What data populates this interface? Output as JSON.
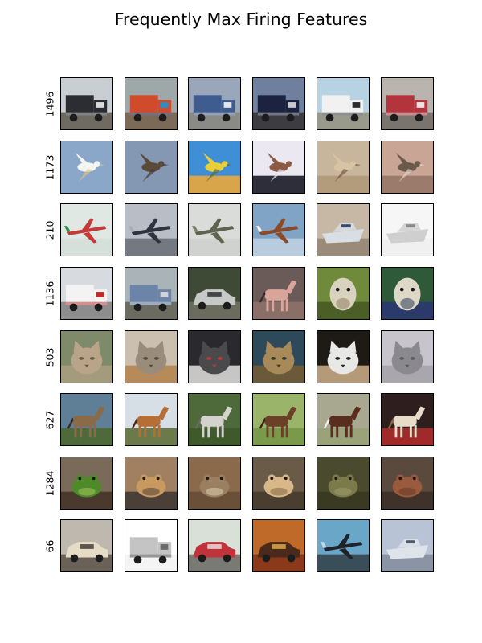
{
  "title": "Frequently Max Firing Features",
  "rows": [
    {
      "feature": "1496",
      "tiles": [
        {
          "subject": "tanker-truck",
          "bg": "#c9ced2",
          "ground": "#6f6a62",
          "obj": "#2b2d33",
          "accent": "#d9d9d9",
          "shape": "truck"
        },
        {
          "subject": "graffiti-truck",
          "bg": "#9ea8a8",
          "ground": "#7b6a58",
          "obj": "#d04a2c",
          "accent": "#2a8fc2",
          "shape": "truck"
        },
        {
          "subject": "blue-semi-truck",
          "bg": "#9aa6ba",
          "ground": "#8a8a86",
          "obj": "#3f5c8f",
          "accent": "#e6e6e6",
          "shape": "truck"
        },
        {
          "subject": "semi-truck-dusk",
          "bg": "#6f7f9e",
          "ground": "#3d3c40",
          "obj": "#1c2340",
          "accent": "#c9c9c9",
          "shape": "truck"
        },
        {
          "subject": "white-dump-truck",
          "bg": "#b7d2e3",
          "ground": "#9a9a8c",
          "obj": "#f1f1f1",
          "accent": "#2c2c2c",
          "shape": "truck"
        },
        {
          "subject": "red-tow-truck",
          "bg": "#b9b4ae",
          "ground": "#7a746e",
          "obj": "#b3343d",
          "accent": "#e5e5e5",
          "shape": "truck"
        }
      ]
    },
    {
      "feature": "1173",
      "tiles": [
        {
          "subject": "white-egret-flying",
          "bg": "#8aa6c9",
          "ground": "#8aa6c9",
          "obj": "#f4f4f0",
          "accent": "#d7c28a",
          "shape": "bird"
        },
        {
          "subject": "hawk-flying",
          "bg": "#8498b4",
          "ground": "#8498b4",
          "obj": "#5a4a3a",
          "accent": "#4a3c30",
          "shape": "bird"
        },
        {
          "subject": "yellow-finch",
          "bg": "#3f8fd6",
          "ground": "#d9a54a",
          "obj": "#e8cf3a",
          "accent": "#5c6b3a",
          "shape": "bird"
        },
        {
          "subject": "sparrow-on-post",
          "bg": "#ece8f2",
          "ground": "#2e2e3a",
          "obj": "#8c5a44",
          "accent": "#ece8f2",
          "shape": "bird"
        },
        {
          "subject": "bird-on-sand",
          "bg": "#c7b59c",
          "ground": "#b29c7c",
          "obj": "#d8c3a4",
          "accent": "#7a5a40",
          "shape": "bird"
        },
        {
          "subject": "bird-on-branch",
          "bg": "#c9a595",
          "ground": "#9b7c6c",
          "obj": "#6b5a4c",
          "accent": "#e0d0c0",
          "shape": "bird"
        }
      ]
    },
    {
      "feature": "210",
      "tiles": [
        {
          "subject": "small-plane-sky",
          "bg": "#dfe8e2",
          "ground": "#d6e0da",
          "obj": "#c23a3a",
          "accent": "#3a8a4a",
          "shape": "plane"
        },
        {
          "subject": "stealth-jet",
          "bg": "#b9bdc6",
          "ground": "#747880",
          "obj": "#2f3340",
          "accent": "#a9aeb8",
          "shape": "plane"
        },
        {
          "subject": "plane-grey-sky",
          "bg": "#d9dcd8",
          "ground": "#cfd2ce",
          "obj": "#5e6450",
          "accent": "#7b8066",
          "shape": "plane"
        },
        {
          "subject": "biplanes",
          "bg": "#7fa4c6",
          "ground": "#b8cce0",
          "obj": "#8a4a2a",
          "accent": "#f0f0f0",
          "shape": "plane"
        },
        {
          "subject": "boat-on-sand",
          "bg": "#c7b8a6",
          "ground": "#9a8a78",
          "obj": "#d9dde4",
          "accent": "#2f4a6a",
          "shape": "boat"
        },
        {
          "subject": "sketch-boat",
          "bg": "#f6f6f6",
          "ground": "#f0f0f0",
          "obj": "#cfcfcf",
          "accent": "#8a8a8a",
          "shape": "boat"
        }
      ]
    },
    {
      "feature": "1136",
      "tiles": [
        {
          "subject": "white-box-truck",
          "bg": "#d7dade",
          "ground": "#8d8d8d",
          "obj": "#f3f3f3",
          "accent": "#c02a2a",
          "shape": "truck"
        },
        {
          "subject": "blue-truck",
          "bg": "#a9b3b8",
          "ground": "#6b6b62",
          "obj": "#6c84a8",
          "accent": "#d0d4d8",
          "shape": "truck"
        },
        {
          "subject": "silver-car",
          "bg": "#3f4a36",
          "ground": "#6b6b5e",
          "obj": "#c7c9c9",
          "accent": "#262626",
          "shape": "car"
        },
        {
          "subject": "pink-horse",
          "bg": "#6a5a58",
          "ground": "#8a6f68",
          "obj": "#d9a49a",
          "accent": "#3a2a2a",
          "shape": "horse"
        },
        {
          "subject": "white-horse-head",
          "bg": "#6e8a3a",
          "ground": "#4a5e26",
          "obj": "#d9d2be",
          "accent": "#8a7a5a",
          "shape": "head"
        },
        {
          "subject": "white-dog",
          "bg": "#2f5a3a",
          "ground": "#2a3a6a",
          "obj": "#ddd8c8",
          "accent": "#1a2a4a",
          "shape": "head"
        }
      ]
    },
    {
      "feature": "503",
      "tiles": [
        {
          "subject": "tabby-cat",
          "bg": "#7f8a6a",
          "ground": "#a49a7c",
          "obj": "#b9a48a",
          "accent": "#6a5a44",
          "shape": "cat"
        },
        {
          "subject": "cat-sitting",
          "bg": "#cbbfb0",
          "ground": "#b68a5a",
          "obj": "#9a8c7a",
          "accent": "#5a4a3a",
          "shape": "cat"
        },
        {
          "subject": "cat-lying",
          "bg": "#2a2a2e",
          "ground": "#c8c6c4",
          "obj": "#4a4a4c",
          "accent": "#c03a3a",
          "shape": "cat"
        },
        {
          "subject": "cat-closeup",
          "bg": "#2e4a5a",
          "ground": "#6a5a3a",
          "obj": "#a88a5a",
          "accent": "#3a3a2a",
          "shape": "cat"
        },
        {
          "subject": "black-white-cat",
          "bg": "#1e1a16",
          "ground": "#b49a78",
          "obj": "#e8e8e6",
          "accent": "#2a2624",
          "shape": "cat"
        },
        {
          "subject": "grey-cat-curled",
          "bg": "#c7c4cc",
          "ground": "#aaa6ae",
          "obj": "#8a8a8e",
          "accent": "#5a5a5e",
          "shape": "cat"
        }
      ]
    },
    {
      "feature": "627",
      "tiles": [
        {
          "subject": "brown-horse-field",
          "bg": "#5f7f96",
          "ground": "#4e6a3a",
          "obj": "#8a6a48",
          "accent": "#3a2a1e",
          "shape": "horse"
        },
        {
          "subject": "chestnut-horse",
          "bg": "#d6dee6",
          "ground": "#6a7a4a",
          "obj": "#b66e36",
          "accent": "#4a2a14",
          "shape": "horse"
        },
        {
          "subject": "white-horse-grass",
          "bg": "#4e6a3a",
          "ground": "#3e5a2a",
          "obj": "#d4d2cc",
          "accent": "#6a6a64",
          "shape": "horse"
        },
        {
          "subject": "horse-grazing",
          "bg": "#9ab46a",
          "ground": "#7a9a4a",
          "obj": "#6a4028",
          "accent": "#3a2214",
          "shape": "horse"
        },
        {
          "subject": "bay-horse",
          "bg": "#a8a890",
          "ground": "#9aa27a",
          "obj": "#5a2e1e",
          "accent": "#f0f0f0",
          "shape": "horse"
        },
        {
          "subject": "rearing-horse-rider",
          "bg": "#2e1e1e",
          "ground": "#a02a2a",
          "obj": "#e6dcc8",
          "accent": "#8a6a3a",
          "shape": "horse"
        }
      ]
    },
    {
      "feature": "1284",
      "tiles": [
        {
          "subject": "green-frog",
          "bg": "#7a6a5a",
          "ground": "#4a3a2e",
          "obj": "#4f8a2a",
          "accent": "#9ac05a",
          "shape": "frog"
        },
        {
          "subject": "frog-on-wood",
          "bg": "#a08060",
          "ground": "#4a4038",
          "obj": "#c89a60",
          "accent": "#5a4a3a",
          "shape": "frog"
        },
        {
          "subject": "toad-closeup",
          "bg": "#8a6a4a",
          "ground": "#6a5038",
          "obj": "#9a8060",
          "accent": "#d8c8a8",
          "shape": "frog"
        },
        {
          "subject": "tan-frog",
          "bg": "#6a5a48",
          "ground": "#4a3e30",
          "obj": "#d8b888",
          "accent": "#8a6a48",
          "shape": "frog"
        },
        {
          "subject": "toad-in-leaves",
          "bg": "#4a4a2e",
          "ground": "#3a3a22",
          "obj": "#7a7a4a",
          "accent": "#9a9a6a",
          "shape": "frog"
        },
        {
          "subject": "brown-toad",
          "bg": "#5a4a3e",
          "ground": "#3e322a",
          "obj": "#9a5a3e",
          "accent": "#6a3a28",
          "shape": "frog"
        }
      ]
    },
    {
      "feature": "66",
      "tiles": [
        {
          "subject": "vintage-car-beach",
          "bg": "#bfb8ae",
          "ground": "#6a6258",
          "obj": "#e6dcc6",
          "accent": "#3a3430",
          "shape": "car"
        },
        {
          "subject": "trailer-sketch",
          "bg": "#ffffff",
          "ground": "#f4f4f4",
          "obj": "#c4c4c4",
          "accent": "#6a6a6a",
          "shape": "truck"
        },
        {
          "subject": "red-truck-front",
          "bg": "#d9e0d8",
          "ground": "#7a7a74",
          "obj": "#c0333a",
          "accent": "#e8e8e8",
          "shape": "car"
        },
        {
          "subject": "car-showroom",
          "bg": "#c06a2a",
          "ground": "#8a3a1a",
          "obj": "#4a2a1a",
          "accent": "#e8b04a",
          "shape": "car"
        },
        {
          "subject": "stealth-bomber",
          "bg": "#6aa6c8",
          "ground": "#3a4e5a",
          "obj": "#1e242a",
          "accent": "#c8d8e0",
          "shape": "plane"
        },
        {
          "subject": "boat-dock",
          "bg": "#b8c4d6",
          "ground": "#8a94a4",
          "obj": "#dfe4ea",
          "accent": "#4a5a6a",
          "shape": "boat"
        }
      ]
    }
  ]
}
